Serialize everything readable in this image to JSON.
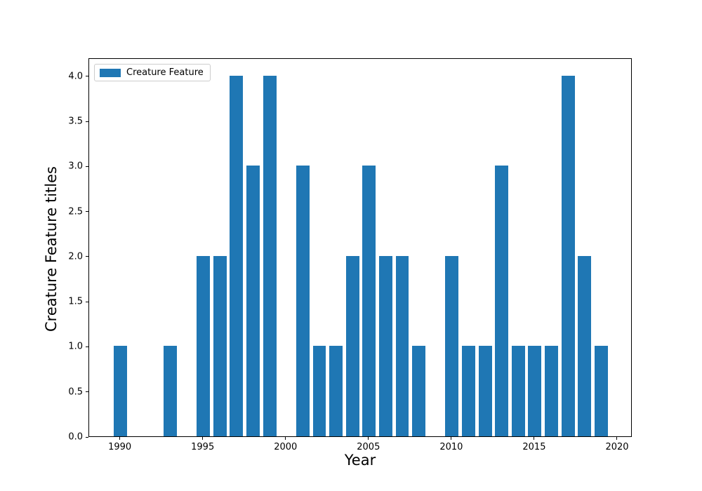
{
  "chart_data": {
    "type": "bar",
    "title": "",
    "xlabel": "Year",
    "ylabel": "Creature Feature titles",
    "legend": {
      "label": "Creature Feature",
      "position": "upper-left"
    },
    "bar_color": "#1f77b4",
    "bar_width": 0.8,
    "grid": false,
    "x": [
      1990,
      1991,
      1992,
      1993,
      1994,
      1995,
      1996,
      1997,
      1998,
      1999,
      2000,
      2001,
      2002,
      2003,
      2004,
      2005,
      2006,
      2007,
      2008,
      2009,
      2010,
      2011,
      2012,
      2013,
      2014,
      2015,
      2016,
      2017,
      2018,
      2019
    ],
    "values": [
      1,
      0,
      0,
      1,
      0,
      2,
      2,
      4,
      3,
      4,
      0,
      3,
      1,
      1,
      2,
      3,
      2,
      2,
      1,
      0,
      2,
      1,
      1,
      3,
      1,
      1,
      1,
      4,
      2,
      1
    ],
    "xlim": [
      1988.11,
      2020.89
    ],
    "ylim": [
      0,
      4.2
    ],
    "xticks": [
      1990,
      1995,
      2000,
      2005,
      2010,
      2015,
      2020
    ],
    "xtick_labels": [
      "1990",
      "1995",
      "2000",
      "2005",
      "2010",
      "2015",
      "2020"
    ],
    "yticks": [
      0.0,
      0.5,
      1.0,
      1.5,
      2.0,
      2.5,
      3.0,
      3.5,
      4.0
    ],
    "ytick_labels": [
      "0.0",
      "0.5",
      "1.0",
      "1.5",
      "2.0",
      "2.5",
      "3.0",
      "3.5",
      "4.0"
    ],
    "axis_color": "#000000"
  }
}
